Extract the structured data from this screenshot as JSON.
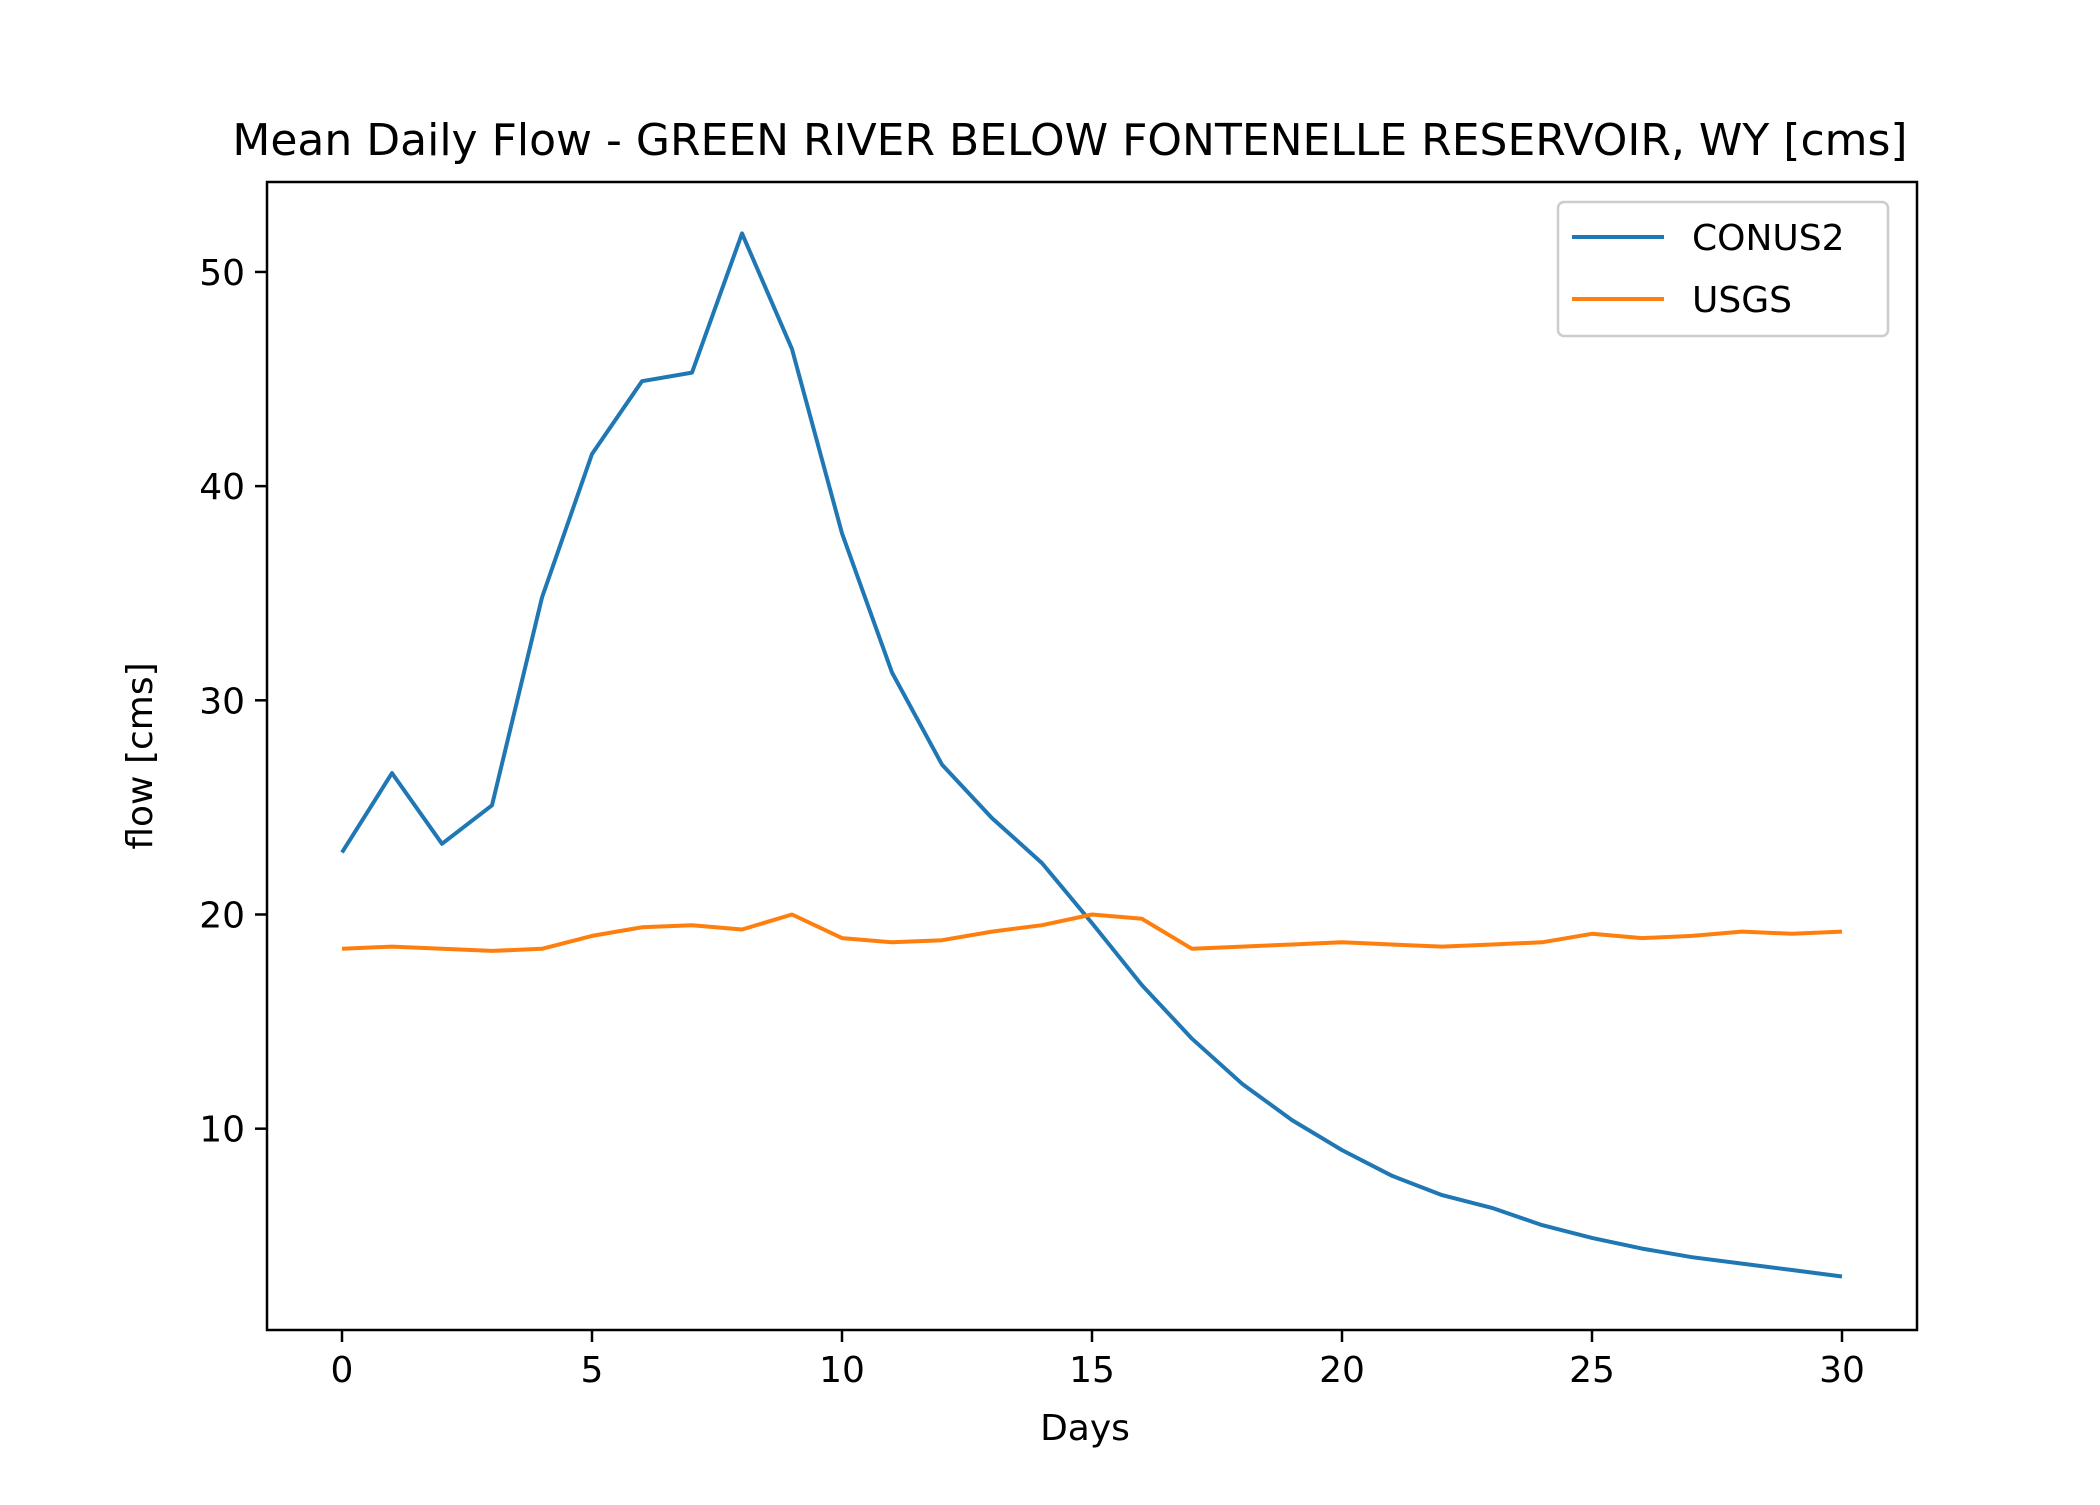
{
  "chart_data": {
    "type": "line",
    "title": "Mean Daily Flow - GREEN RIVER BELOW FONTENELLE RESERVOIR, WY [cms]",
    "xlabel": "Days",
    "ylabel": "flow [cms]",
    "xlim": [
      -1.5,
      31.5
    ],
    "ylim": [
      0.6,
      54.2
    ],
    "xticks": [
      0,
      5,
      10,
      15,
      20,
      25,
      30
    ],
    "yticks": [
      10,
      20,
      30,
      40,
      50
    ],
    "grid": false,
    "legend_position": "top-right",
    "x": [
      0,
      1,
      2,
      3,
      4,
      5,
      6,
      7,
      8,
      9,
      10,
      11,
      12,
      13,
      14,
      15,
      16,
      17,
      18,
      19,
      20,
      21,
      22,
      23,
      24,
      25,
      26,
      27,
      28,
      29,
      30
    ],
    "series": [
      {
        "name": "CONUS2",
        "color": "#1f77b4",
        "values": [
          22.9,
          26.6,
          23.3,
          25.1,
          34.8,
          41.5,
          44.9,
          45.3,
          51.8,
          46.4,
          37.8,
          31.3,
          27.0,
          24.5,
          22.4,
          19.6,
          16.7,
          14.2,
          12.1,
          10.4,
          9.0,
          7.8,
          6.9,
          6.3,
          5.5,
          4.9,
          4.4,
          4.0,
          3.7,
          3.4,
          3.1
        ]
      },
      {
        "name": "USGS",
        "color": "#ff7f0e",
        "values": [
          18.4,
          18.5,
          18.4,
          18.3,
          18.4,
          19.0,
          19.4,
          19.5,
          19.3,
          20.0,
          18.9,
          18.7,
          18.8,
          19.2,
          19.5,
          20.0,
          19.8,
          18.4,
          18.5,
          18.6,
          18.7,
          18.6,
          18.5,
          18.6,
          18.7,
          19.1,
          18.9,
          19.0,
          19.2,
          19.1,
          19.2
        ]
      }
    ]
  }
}
